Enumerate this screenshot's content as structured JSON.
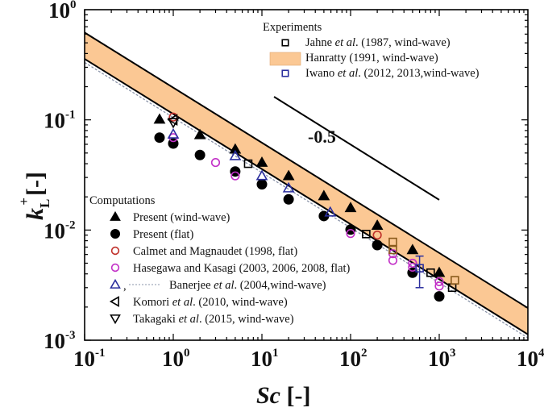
{
  "chart_data": {
    "type": "scatter",
    "title": "",
    "xlabel": "Sc [-]",
    "ylabel": "k_L+ [-]",
    "xscale": "log",
    "yscale": "log",
    "xlim": [
      0.1,
      10000
    ],
    "ylim": [
      0.001,
      1
    ],
    "grid": false,
    "x_tick_labels": [
      {
        "base": "10",
        "exp": "-1",
        "value": 0.1
      },
      {
        "base": "10",
        "exp": "0",
        "value": 1
      },
      {
        "base": "10",
        "exp": "1",
        "value": 10
      },
      {
        "base": "10",
        "exp": "2",
        "value": 100
      },
      {
        "base": "10",
        "exp": "3",
        "value": 1000
      },
      {
        "base": "10",
        "exp": "4",
        "value": 10000
      }
    ],
    "y_tick_labels": [
      {
        "base": "10",
        "exp": "0",
        "value": 1
      },
      {
        "base": "10",
        "exp": "-1",
        "value": 0.1
      },
      {
        "base": "10",
        "exp": "-2",
        "value": 0.01
      },
      {
        "base": "10",
        "exp": "-3",
        "value": 0.001
      }
    ],
    "band": {
      "name": "Hanratty (1991, wind-wave)",
      "color": "#fbc894",
      "exponent": -0.5,
      "upper_coeff": 0.196,
      "lower_coeff": 0.113
    },
    "dashed_line": {
      "name": "Banerjee et al. (2004, wind-wave)",
      "color": "#8a93a8",
      "exponent": -0.5,
      "coeff": 0.105
    },
    "reference_line": {
      "label": "-0.5",
      "x": [
        13.7,
        1000
      ],
      "y": [
        0.162,
        0.0188
      ]
    },
    "series": [
      {
        "name": "Present (wind-wave)",
        "marker": "triangle-up",
        "filled": true,
        "color": "#000000",
        "x": [
          0.7,
          2,
          5,
          10,
          20,
          50,
          100,
          200,
          500,
          1000
        ],
        "y": [
          0.101,
          0.073,
          0.054,
          0.041,
          0.031,
          0.0204,
          0.0159,
          0.011,
          0.0066,
          0.0041
        ]
      },
      {
        "name": "Present (flat)",
        "marker": "circle",
        "filled": true,
        "color": "#000000",
        "x": [
          0.7,
          1,
          2,
          5,
          10,
          20,
          50,
          100,
          200,
          500,
          1000
        ],
        "y": [
          0.069,
          0.061,
          0.048,
          0.034,
          0.026,
          0.019,
          0.0134,
          0.0101,
          0.0073,
          0.0041,
          0.0025
        ]
      },
      {
        "name": "Calmet and Magnaudet (1998, flat)",
        "marker": "circle",
        "filled": false,
        "color": "#c0302a",
        "x": [
          1,
          200
        ],
        "y": [
          0.106,
          0.009
        ]
      },
      {
        "name": "Hasegawa and Kasagi (2003, 2006, 2008, flat)",
        "marker": "circle",
        "filled": false,
        "color": "#c22fc7",
        "x": [
          1,
          3,
          5,
          100,
          300,
          300,
          500,
          500,
          1000,
          1000
        ],
        "y": [
          0.069,
          0.041,
          0.031,
          0.0093,
          0.0061,
          0.0053,
          0.005,
          0.0046,
          0.0034,
          0.0031
        ]
      },
      {
        "name": "Banerjee et al. (2004,wind-wave)",
        "marker": "triangle-up",
        "filled": false,
        "color": "#2b2f9e",
        "x": [
          1,
          5,
          10,
          20,
          59
        ],
        "y": [
          0.074,
          0.047,
          0.031,
          0.024,
          0.0145
        ]
      },
      {
        "name": "Komori et al. (2010, wind-wave)",
        "marker": "triangle-left",
        "filled": false,
        "color": "#000000",
        "x": [
          1
        ],
        "y": [
          0.1
        ]
      },
      {
        "name": "Takagaki et al. (2015, wind-wave)",
        "marker": "triangle-down",
        "filled": false,
        "color": "#000000",
        "x": [
          1
        ],
        "y": [
          0.095
        ]
      },
      {
        "name": "Jahne et al. (1987, wind-wave)",
        "marker": "square",
        "filled": false,
        "color": "#000000",
        "x": [
          7,
          150,
          800,
          1400
        ],
        "y": [
          0.04,
          0.0092,
          0.0041,
          0.003
        ]
      },
      {
        "name": "Jahne et al. (1987, wind-wave) (brown)",
        "marker": "square",
        "filled": false,
        "color": "#8a5a1c",
        "x": [
          300,
          300,
          1500
        ],
        "y": [
          0.0078,
          0.0066,
          0.0035
        ]
      },
      {
        "name": "Iwano et al. (2012, 2013,wind-wave)",
        "marker": "square",
        "filled": false,
        "color": "#2b2f9e",
        "x": [
          600
        ],
        "y": [
          0.0045
        ],
        "err_low": [
          0.003
        ],
        "err_high": [
          0.0058
        ]
      }
    ],
    "legend": {
      "experiments": {
        "title": "Experiments",
        "placement": "top-right",
        "items": [
          {
            "marker": "square",
            "color": "#000000",
            "parts": [
              [
                "Jahne ",
                false
              ],
              [
                "et al",
                true
              ],
              [
                ". (1987, wind-wave)",
                false
              ]
            ]
          },
          {
            "marker": "band",
            "color": "#fbc894",
            "parts": [
              [
                "Hanratty (1991, wind-wave)",
                false
              ]
            ]
          },
          {
            "marker": "square",
            "color": "#2b2f9e",
            "parts": [
              [
                "Iwano ",
                false
              ],
              [
                "et al",
                true
              ],
              [
                ". (2012, 2013,wind-wave)",
                false
              ]
            ]
          }
        ]
      },
      "computations": {
        "title": "Computations",
        "placement": "bottom-left",
        "items": [
          {
            "marker": "triangle-up",
            "filled": true,
            "color": "#000000",
            "parts": [
              [
                "Present (wind-wave)",
                false
              ]
            ]
          },
          {
            "marker": "circle",
            "filled": true,
            "color": "#000000",
            "parts": [
              [
                "Present (flat)",
                false
              ]
            ]
          },
          {
            "marker": "circle",
            "filled": false,
            "color": "#c0302a",
            "parts": [
              [
                "Calmet and Magnaudet (1998, flat)",
                false
              ]
            ]
          },
          {
            "marker": "circle",
            "filled": false,
            "color": "#c22fc7",
            "parts": [
              [
                "Hasegawa and Kasagi (2003, 2006, 2008, flat)",
                false
              ]
            ]
          },
          {
            "marker": "triangle-up",
            "filled": false,
            "color": "#2b2f9e",
            "dashed": true,
            "parts": [
              [
                "Banerjee ",
                false
              ],
              [
                "et al",
                true
              ],
              [
                ". (2004,wind-wave)",
                false
              ]
            ]
          },
          {
            "marker": "triangle-left",
            "filled": false,
            "color": "#000000",
            "parts": [
              [
                "Komori ",
                false
              ],
              [
                "et al",
                true
              ],
              [
                ". (2010, wind-wave)",
                false
              ]
            ]
          },
          {
            "marker": "triangle-down",
            "filled": false,
            "color": "#000000",
            "parts": [
              [
                "Takagaki ",
                false
              ],
              [
                "et al",
                true
              ],
              [
                ". (2015, wind-wave)",
                false
              ]
            ]
          }
        ]
      }
    }
  },
  "labels": {
    "xlabel_var": "Sc",
    "xlabel_unit": " [-]",
    "ylabel_var": "k",
    "ylabel_sub": "L",
    "ylabel_sup": "+",
    "ylabel_unit": "[-]",
    "slope_annotation": "-0.5"
  }
}
